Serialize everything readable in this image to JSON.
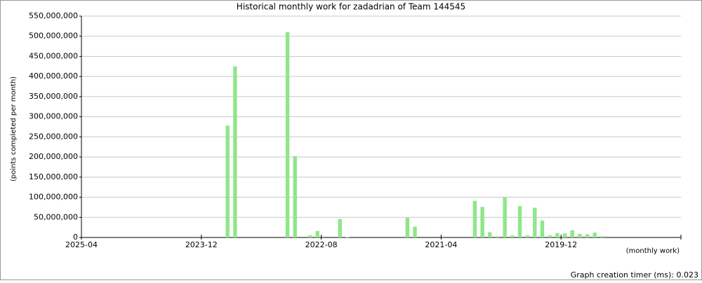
{
  "chart_data": {
    "type": "bar",
    "title": "Historical monthly work for zadadrian of Team 144545",
    "y_label": "(points completed per month)",
    "x_label": "(monthly work)",
    "footer": "Graph creation timer (ms): 0.023",
    "color": "#90e68a",
    "grid": true,
    "categories": [
      "2025-04",
      null,
      null,
      null,
      null,
      null,
      null,
      null,
      null,
      null,
      null,
      null,
      null,
      null,
      null,
      null,
      "2023-12",
      null,
      null,
      null,
      null,
      null,
      null,
      null,
      null,
      null,
      null,
      null,
      null,
      null,
      null,
      null,
      "2022-08",
      null,
      null,
      null,
      null,
      null,
      null,
      null,
      null,
      null,
      null,
      null,
      null,
      null,
      null,
      null,
      "2021-04",
      null,
      null,
      null,
      null,
      null,
      null,
      null,
      null,
      null,
      null,
      null,
      null,
      null,
      null,
      null,
      "2019-12",
      null,
      null,
      null,
      null,
      null,
      null,
      null,
      null,
      null,
      null,
      null,
      null,
      null,
      null,
      null
    ],
    "values": [
      0,
      0,
      0,
      0,
      0,
      0,
      0,
      0,
      0,
      0,
      0,
      0,
      0,
      0,
      0,
      0,
      0,
      0,
      0,
      278000000,
      425000000,
      0,
      0,
      0,
      0,
      0,
      0,
      510000000,
      202000000,
      0,
      5000000,
      16000000,
      0,
      0,
      46000000,
      1000000,
      0,
      0,
      0,
      0,
      0,
      0,
      0,
      49000000,
      27000000,
      0,
      0,
      0,
      0,
      0,
      0,
      0,
      91000000,
      76000000,
      13000000,
      3000000,
      100000000,
      5000000,
      78000000,
      5000000,
      74000000,
      42000000,
      5000000,
      11000000,
      10000000,
      18000000,
      9000000,
      8000000,
      12000000,
      3000000,
      0,
      0,
      0,
      0,
      0,
      0,
      0,
      0,
      0,
      0
    ],
    "ylim": [
      0,
      550000000
    ],
    "yticks": [
      0,
      {
        "value": 50000000,
        "label": "50,000,000"
      },
      {
        "value": 100000000,
        "label": "100,000,000"
      },
      {
        "value": 150000000,
        "label": "150,000,000"
      },
      {
        "value": 200000000,
        "label": "200,000,000"
      },
      {
        "value": 250000000,
        "label": "250,000,000"
      },
      {
        "value": 300000000,
        "label": "300,000,000"
      },
      {
        "value": 350000000,
        "label": "350,000,000"
      },
      {
        "value": 400000000,
        "label": "400,000,000"
      },
      {
        "value": 450000000,
        "label": "450,000,000"
      },
      {
        "value": 500000000,
        "label": "500,000,000"
      },
      {
        "value": 550000000,
        "label": "550,000,000"
      }
    ]
  }
}
